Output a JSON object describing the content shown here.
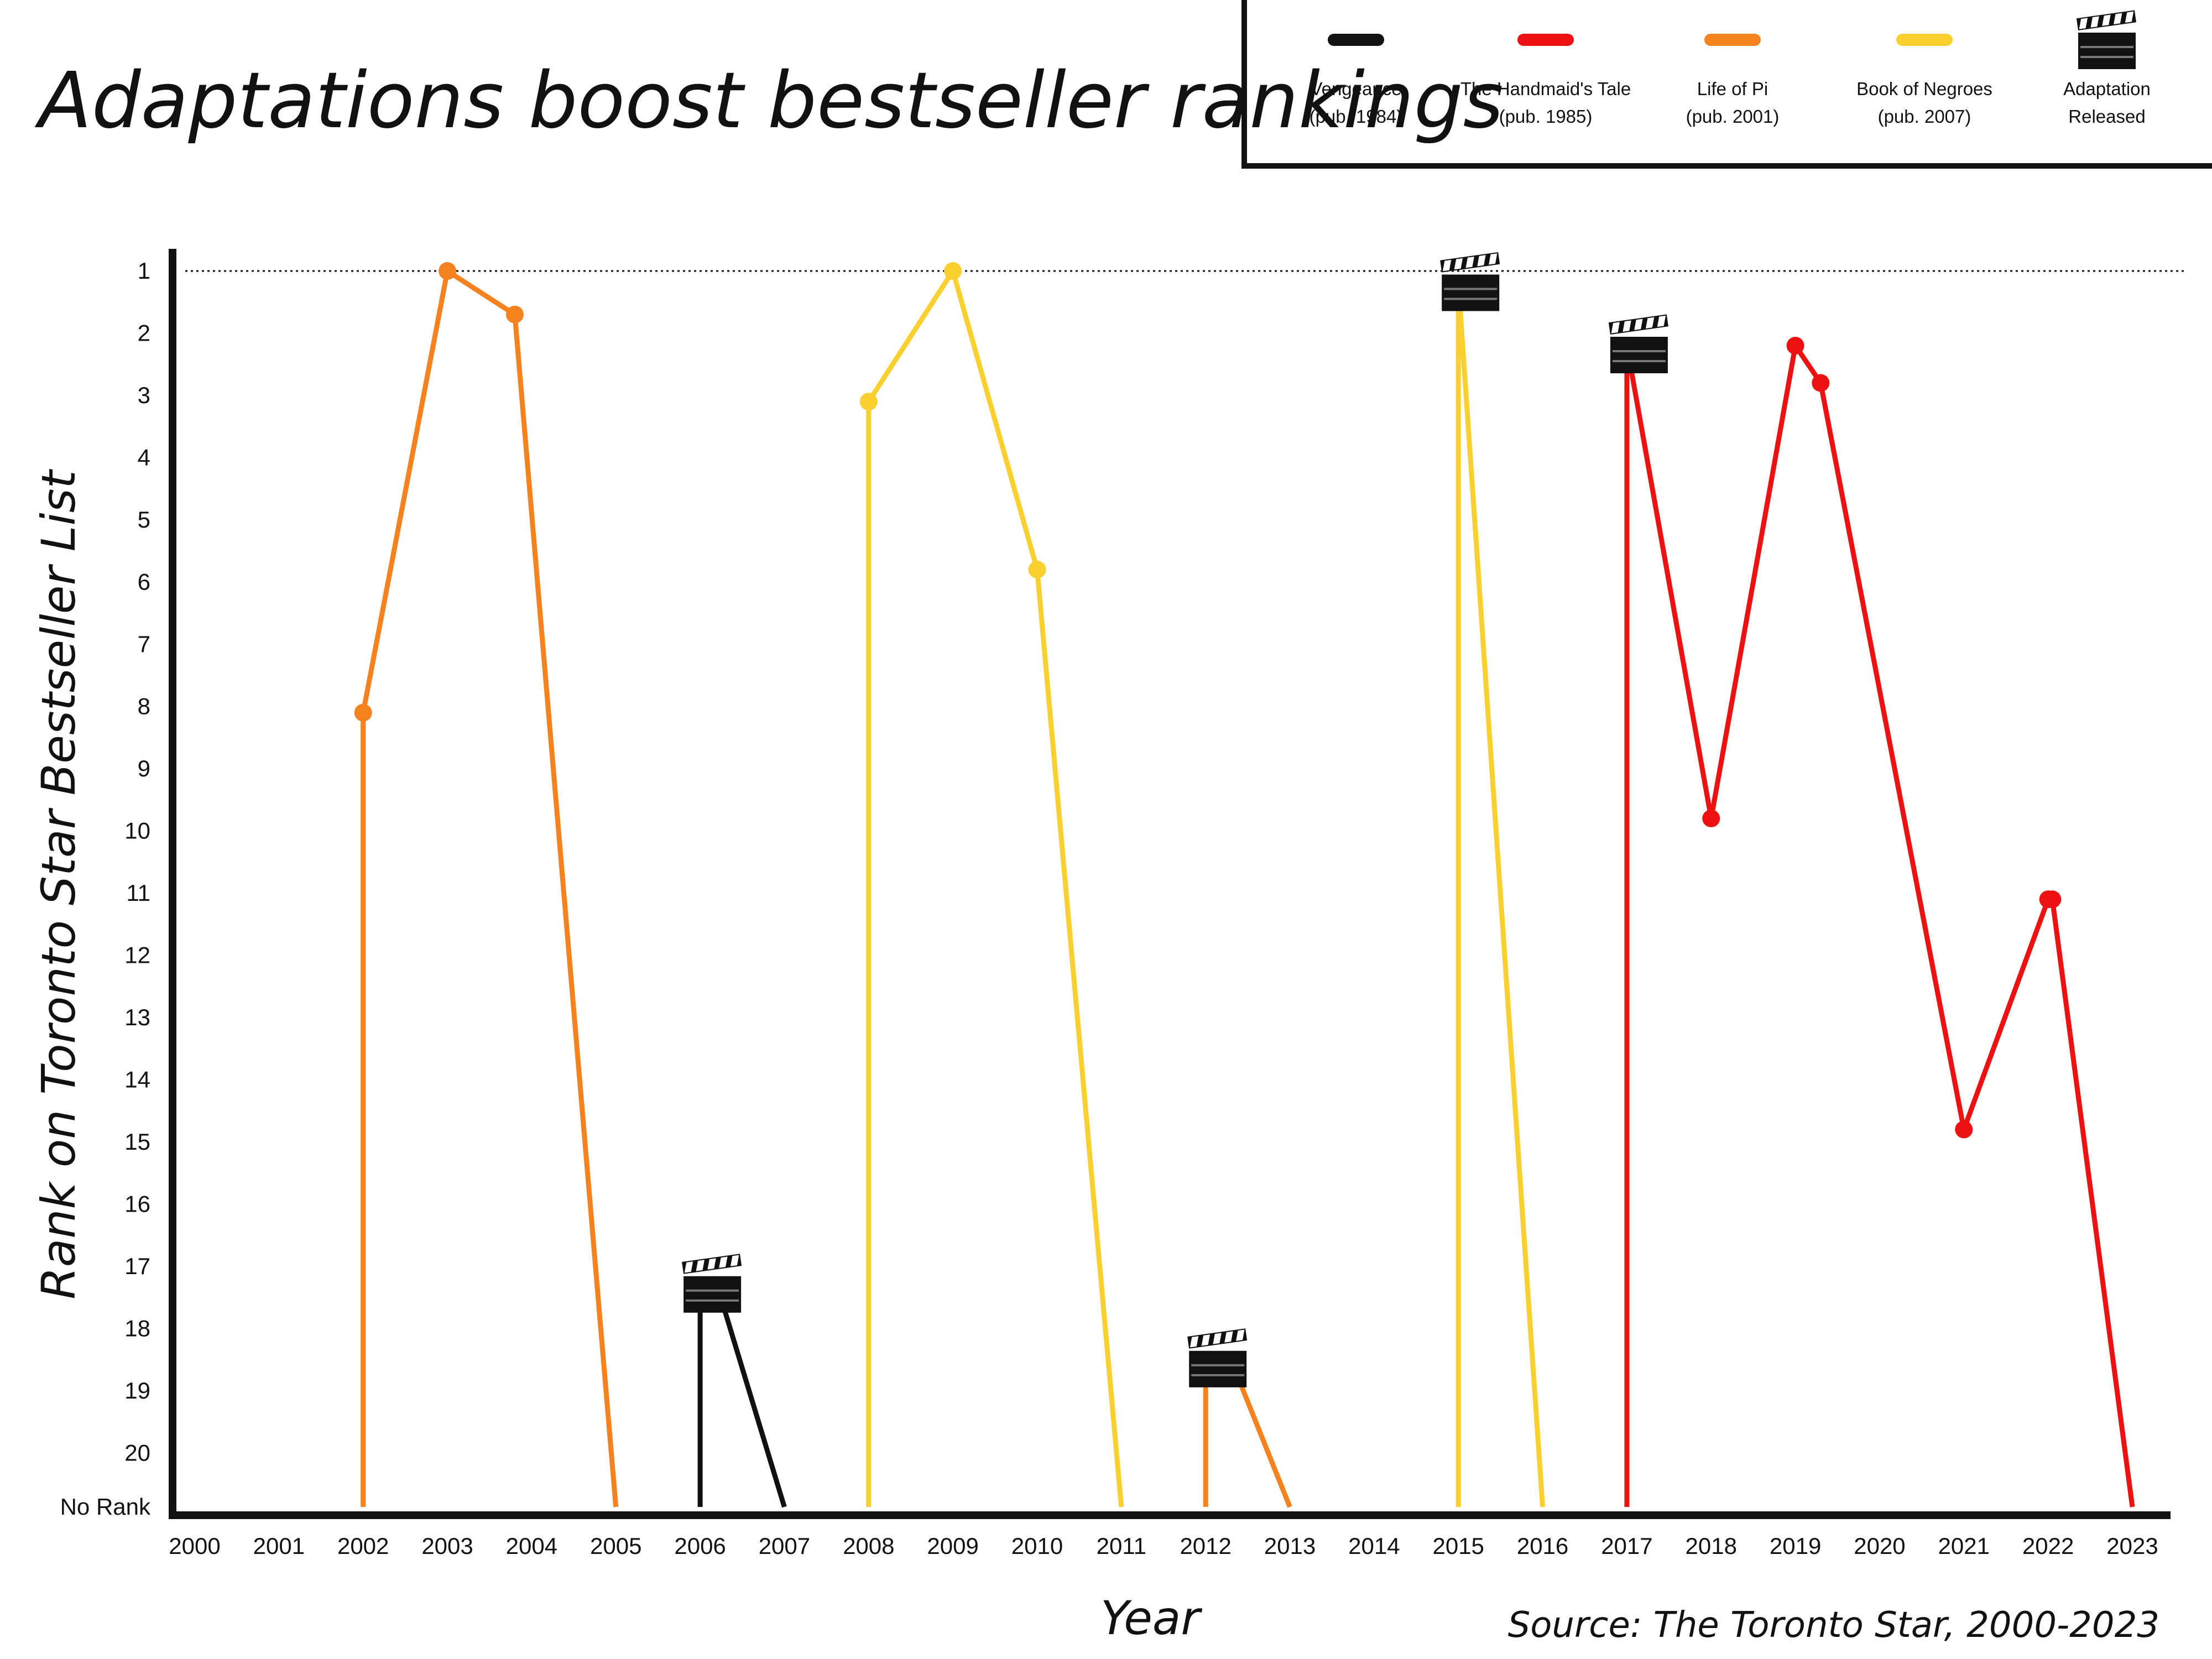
{
  "chart_data": {
    "type": "line",
    "title": "Adaptations boost bestseller rankings",
    "xlabel": "Year",
    "ylabel": "Rank on Toronto Star Bestseller List",
    "source": "Source: The Toronto Star, 2000-2023",
    "x_ticks": [
      "2000",
      "2001",
      "2002",
      "2003",
      "2004",
      "2005",
      "2006",
      "2007",
      "2008",
      "2009",
      "2010",
      "2011",
      "2012",
      "2013",
      "2014",
      "2015",
      "2016",
      "2017",
      "2018",
      "2019",
      "2020",
      "2021",
      "2022",
      "2023"
    ],
    "y_ticks": [
      "1",
      "2",
      "3",
      "4",
      "5",
      "6",
      "7",
      "8",
      "9",
      "10",
      "11",
      "12",
      "13",
      "14",
      "15",
      "16",
      "17",
      "18",
      "19",
      "20",
      "No Rank"
    ],
    "y_axis": "rank 1 at top, rank 20 near bottom, 'No Rank' at baseline",
    "reference_line": {
      "rank": 1,
      "style": "dotted"
    },
    "series": [
      {
        "name": "Vengeance",
        "pub": "(pub. 1984)",
        "color": "#111111",
        "points": [
          {
            "x": 2006,
            "y": "No Rank"
          },
          {
            "x": 2006,
            "y": 17.3,
            "marker": "clapperboard"
          },
          {
            "x": 2006.2,
            "y": 17.3
          },
          {
            "x": 2007,
            "y": "No Rank"
          }
        ]
      },
      {
        "name": "The Handmaid's Tale",
        "pub": "(pub. 1985)",
        "color": "#ee1111",
        "points": [
          {
            "x": 2017,
            "y": "No Rank"
          },
          {
            "x": 2017,
            "y": 2.2,
            "marker": "clapperboard"
          },
          {
            "x": 2018,
            "y": 9.8,
            "dot": true
          },
          {
            "x": 2019,
            "y": 2.2,
            "dot": true
          },
          {
            "x": 2019.3,
            "y": 2.8,
            "dot": true
          },
          {
            "x": 2021,
            "y": 14.8,
            "dot": true
          },
          {
            "x": 2022,
            "y": 11.1,
            "dot": true
          },
          {
            "x": 2022.05,
            "y": 11.1,
            "dot": true
          },
          {
            "x": 2023,
            "y": "No Rank"
          }
        ]
      },
      {
        "name": "Life of Pi",
        "pub": "(pub. 2001)",
        "color": "#f5821f",
        "points": [
          {
            "x": 2002,
            "y": "No Rank"
          },
          {
            "x": 2002,
            "y": 8.1,
            "dot": true
          },
          {
            "x": 2003,
            "y": 1.0,
            "dot": true
          },
          {
            "x": 2003.8,
            "y": 1.7,
            "dot": true
          },
          {
            "x": 2005,
            "y": "No Rank"
          },
          {
            "x": 2012,
            "y": "No Rank"
          },
          {
            "x": 2012,
            "y": 18.5,
            "marker": "clapperboard"
          },
          {
            "x": 2012.3,
            "y": 18.5
          },
          {
            "x": 2013,
            "y": "No Rank"
          }
        ]
      },
      {
        "name": "Book of Negroes",
        "pub": "(pub. 2007)",
        "color": "#f9d030",
        "points": [
          {
            "x": 2008,
            "y": "No Rank"
          },
          {
            "x": 2008,
            "y": 3.1,
            "dot": true
          },
          {
            "x": 2009,
            "y": 1.0,
            "dot": true
          },
          {
            "x": 2010,
            "y": 5.8,
            "dot": true
          },
          {
            "x": 2011,
            "y": "No Rank"
          },
          {
            "x": 2015,
            "y": "No Rank"
          },
          {
            "x": 2015,
            "y": 1.2,
            "marker": "clapperboard"
          },
          {
            "x": 2016,
            "y": "No Rank"
          }
        ]
      }
    ],
    "legend": {
      "placement": "top-right",
      "items": [
        {
          "label": "Vengeance",
          "sublabel": "(pub. 1984)",
          "color": "#111111",
          "icon": "line-swatch"
        },
        {
          "label": "The Handmaid's Tale",
          "sublabel": "(pub. 1985)",
          "color": "#ee1111",
          "icon": "line-swatch"
        },
        {
          "label": "Life of Pi",
          "sublabel": "(pub. 2001)",
          "color": "#f5821f",
          "icon": "line-swatch"
        },
        {
          "label": "Book of Negroes",
          "sublabel": "(pub. 2007)",
          "color": "#f9d030",
          "icon": "line-swatch"
        },
        {
          "label": "Adaptation",
          "sublabel": "Released",
          "color": "#111111",
          "icon": "clapperboard-icon"
        }
      ]
    }
  }
}
